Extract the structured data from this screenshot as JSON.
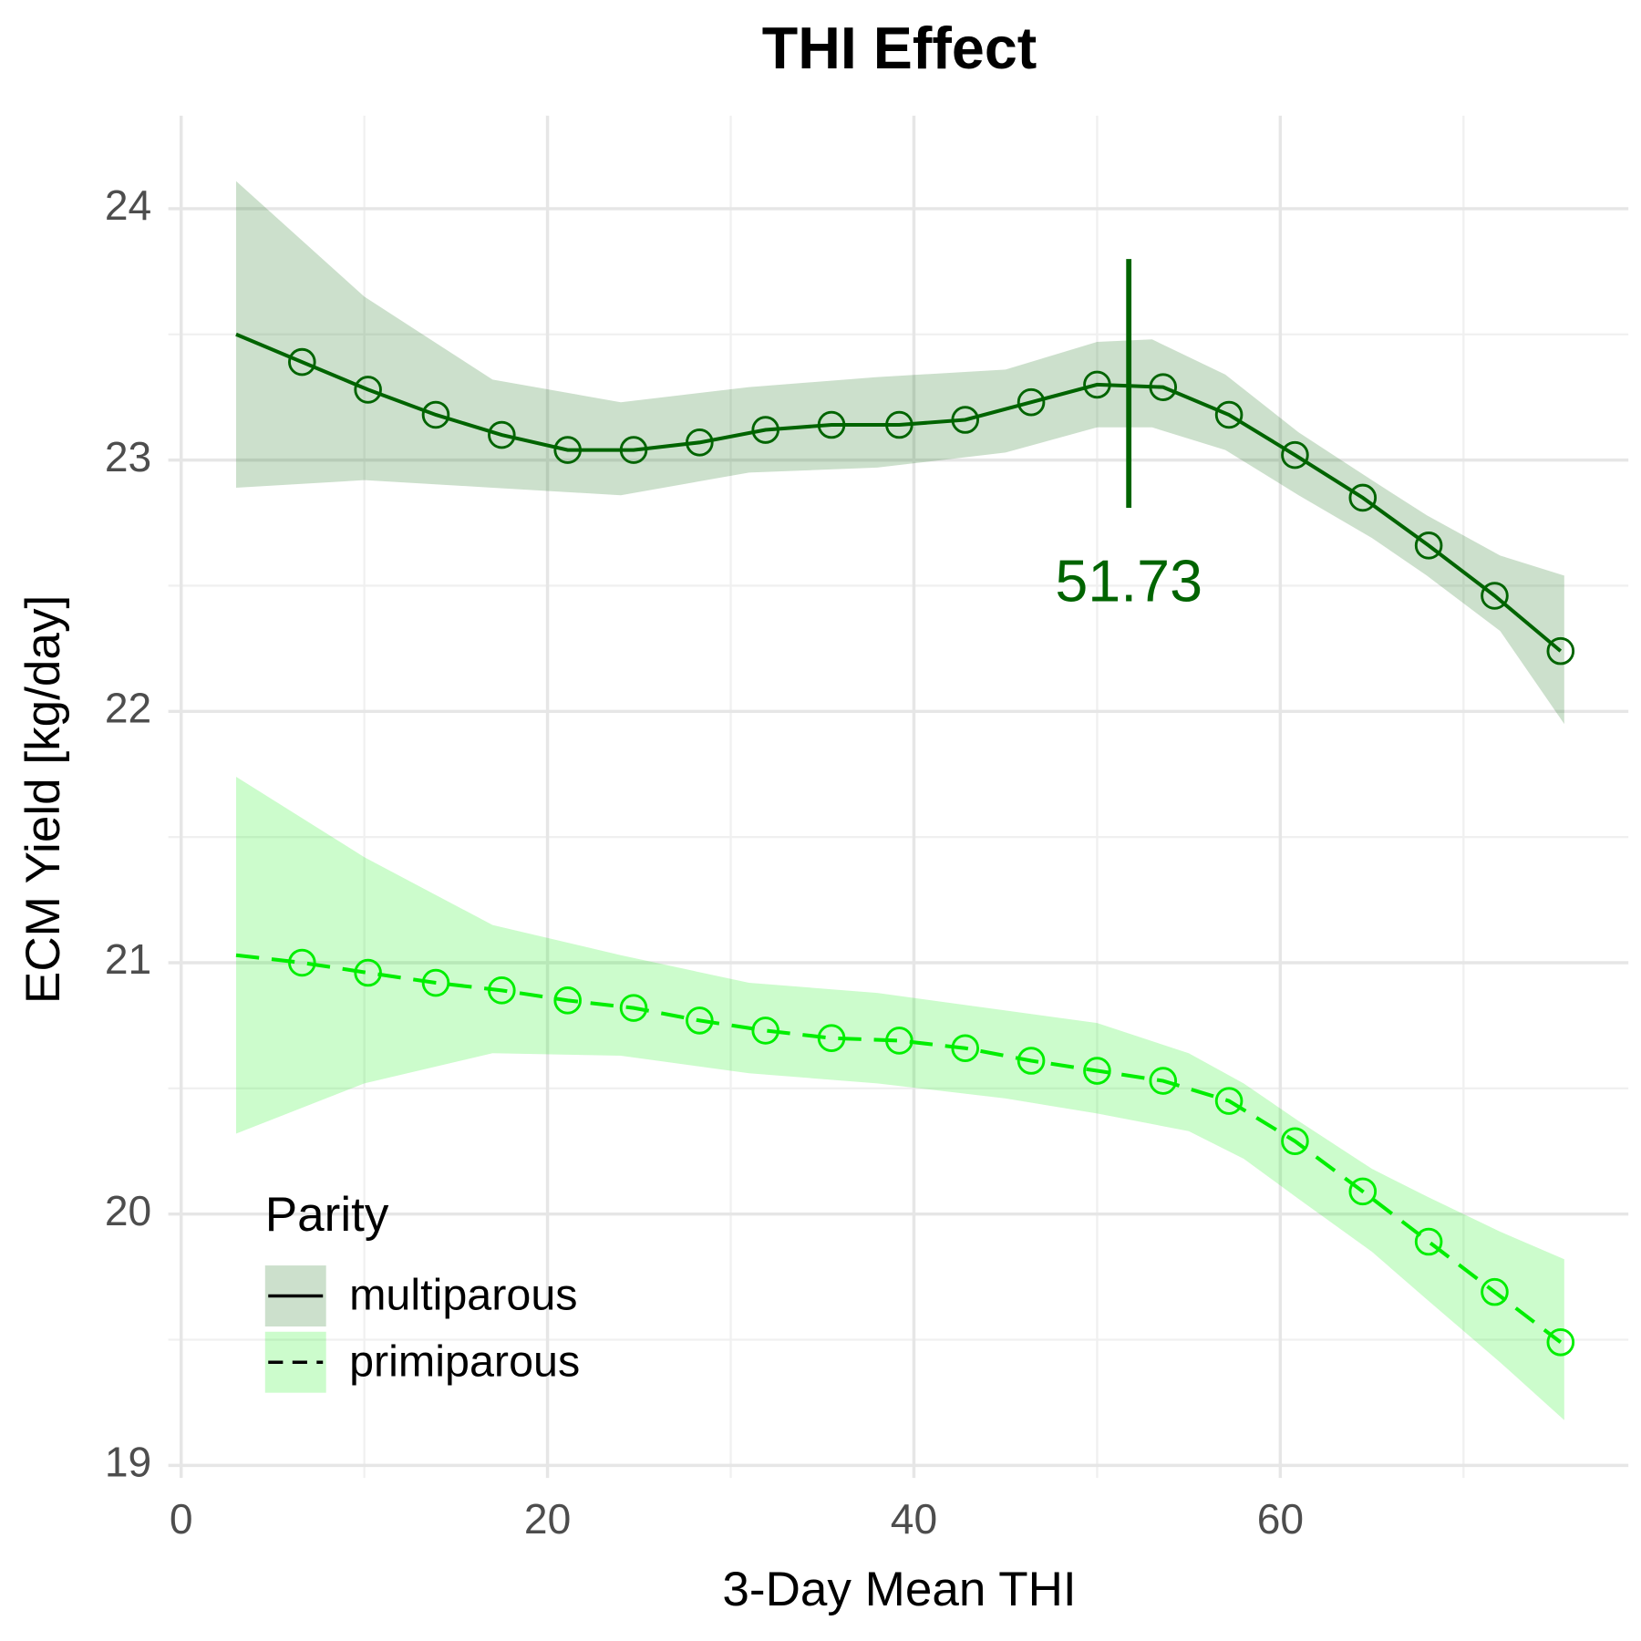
{
  "chart_data": {
    "type": "line",
    "title": "THI Effect",
    "x_label": "3-Day Mean THI",
    "y_label": "ECM Yield [kg/day]",
    "xlim": [
      -0.7,
      79
    ],
    "ylim": [
      18.95,
      24.37
    ],
    "xticks": [
      0,
      20,
      40,
      60
    ],
    "xminor": [
      10,
      30,
      50,
      70
    ],
    "yticks": [
      19,
      20,
      21,
      22,
      23,
      24
    ],
    "yminor": [
      19.5,
      20.5,
      21.5,
      22.5,
      23.5
    ],
    "grid": true,
    "legend": {
      "title": "Parity",
      "position": "bottom-left"
    },
    "annotation": {
      "label": "51.73",
      "x": 51.73,
      "y": 22.5,
      "line_x": 51.73,
      "line_y": [
        22.81,
        23.8
      ],
      "color": "#006400"
    },
    "series": [
      {
        "name": "multiparous",
        "color": "#006400",
        "dashed": false,
        "curve": {
          "x": [
            3,
            6.6,
            10.2,
            13.9,
            17.5,
            21.1,
            24.7,
            28.3,
            31.9,
            35.5,
            39.2,
            42.8,
            46.4,
            50.0,
            53.6,
            57.2,
            60.8,
            64.5,
            68.1,
            71.7,
            75.3
          ],
          "values": [
            23.5,
            23.39,
            23.28,
            23.18,
            23.1,
            23.04,
            23.04,
            23.07,
            23.12,
            23.14,
            23.14,
            23.16,
            23.23,
            23.3,
            23.29,
            23.18,
            23.02,
            22.85,
            22.66,
            22.46,
            22.24
          ]
        },
        "points": {
          "x": [
            6.6,
            10.2,
            13.9,
            17.5,
            21.1,
            24.7,
            28.3,
            31.9,
            35.5,
            39.2,
            42.8,
            46.4,
            50.0,
            53.6,
            57.2,
            60.8,
            64.5,
            68.1,
            71.7,
            75.3
          ],
          "values": [
            23.39,
            23.28,
            23.18,
            23.1,
            23.04,
            23.04,
            23.07,
            23.12,
            23.14,
            23.14,
            23.16,
            23.23,
            23.3,
            23.29,
            23.18,
            23.02,
            22.85,
            22.66,
            22.46,
            22.24
          ]
        },
        "band": {
          "x": [
            3,
            10,
            17,
            24,
            31,
            38,
            45,
            50,
            53,
            57,
            61,
            65,
            68,
            72,
            75.5
          ],
          "upper": [
            24.11,
            23.65,
            23.32,
            23.23,
            23.29,
            23.33,
            23.36,
            23.47,
            23.48,
            23.34,
            23.11,
            22.92,
            22.78,
            22.62,
            22.54
          ],
          "lower": [
            22.89,
            22.92,
            22.89,
            22.86,
            22.95,
            22.97,
            23.03,
            23.13,
            23.13,
            23.04,
            22.86,
            22.69,
            22.54,
            22.32,
            21.95
          ]
        }
      },
      {
        "name": "primiparous",
        "color": "#00ee00",
        "dashed": true,
        "curve": {
          "x": [
            3,
            6.6,
            10.2,
            13.9,
            17.5,
            21.1,
            24.7,
            28.3,
            31.9,
            35.5,
            39.2,
            42.8,
            46.4,
            50.0,
            53.6,
            57.2,
            60.8,
            64.5,
            68.1,
            71.7,
            75.3
          ],
          "values": [
            21.03,
            21.0,
            20.96,
            20.92,
            20.89,
            20.85,
            20.82,
            20.77,
            20.73,
            20.7,
            20.69,
            20.66,
            20.61,
            20.57,
            20.53,
            20.45,
            20.29,
            20.09,
            19.89,
            19.69,
            19.49
          ]
        },
        "points": {
          "x": [
            6.6,
            10.2,
            13.9,
            17.5,
            21.1,
            24.7,
            28.3,
            31.9,
            35.5,
            39.2,
            42.8,
            46.4,
            50.0,
            53.6,
            57.2,
            60.8,
            64.5,
            68.1,
            71.7,
            75.3
          ],
          "values": [
            21.0,
            20.96,
            20.92,
            20.89,
            20.85,
            20.82,
            20.77,
            20.73,
            20.7,
            20.69,
            20.66,
            20.61,
            20.57,
            20.53,
            20.45,
            20.29,
            20.09,
            19.89,
            19.69,
            19.49
          ]
        },
        "band": {
          "x": [
            3,
            10,
            17,
            24,
            31,
            38,
            45,
            50,
            55,
            58,
            61,
            65,
            68,
            72,
            75.5
          ],
          "upper": [
            21.74,
            21.42,
            21.15,
            21.03,
            20.92,
            20.88,
            20.81,
            20.76,
            20.64,
            20.52,
            20.37,
            20.18,
            20.07,
            19.93,
            19.82
          ],
          "lower": [
            20.32,
            20.52,
            20.64,
            20.63,
            20.56,
            20.52,
            20.46,
            20.4,
            20.33,
            20.22,
            20.06,
            19.85,
            19.66,
            19.41,
            19.18
          ]
        }
      }
    ]
  }
}
